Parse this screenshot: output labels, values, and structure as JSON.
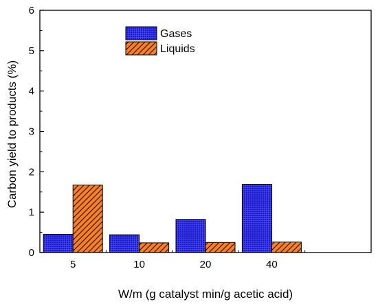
{
  "chart_data": {
    "type": "bar",
    "categories": [
      "5",
      "10",
      "20",
      "40"
    ],
    "series": [
      {
        "name": "Gases",
        "values": [
          0.45,
          0.44,
          0.82,
          1.69
        ],
        "color": "#1a1acc",
        "pattern": "grid"
      },
      {
        "name": "Liquids",
        "values": [
          1.67,
          0.24,
          0.25,
          0.26
        ],
        "color": "#f58220",
        "pattern": "diagonal-hatch"
      }
    ],
    "xlabel": "W/m (g catalyst min/g acetic acid)",
    "ylabel": "Carbon yield to products (%)",
    "ylim": [
      0,
      6
    ],
    "yticks": [
      "0",
      "1",
      "2",
      "3",
      "4",
      "5",
      "6"
    ],
    "grid": false,
    "legend_position": "top-center"
  }
}
